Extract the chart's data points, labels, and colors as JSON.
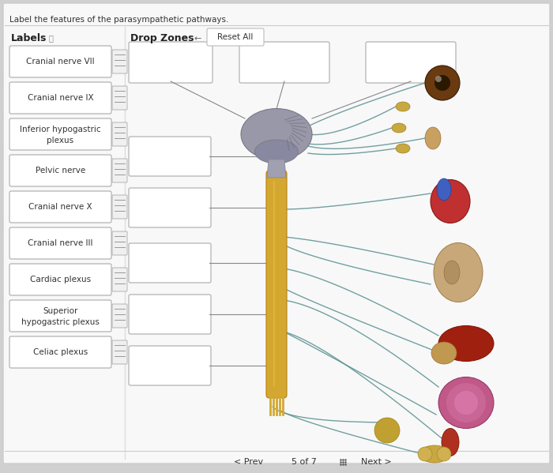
{
  "title": "Label the features of the parasympathetic pathways.",
  "bg_color": "#e8e8e8",
  "panel_bg": "#f2f2f2",
  "label_items": [
    "Cranial nerve VII",
    "Cranial nerve IX",
    "Inferior hypogastric\nplexus",
    "Pelvic nerve",
    "Cranial nerve X",
    "Cranial nerve III",
    "Cardiac plexus",
    "Superior\nhypogastric plexus",
    "Celiac plexus"
  ],
  "nerve_color": "#5a9090",
  "spine_color": "#d4a830",
  "spine_edge": "#b88010",
  "box_border": "#aaaaaa",
  "footer_prev": "< Prev",
  "footer_page": "5 of 7",
  "footer_next": "Next >",
  "reset_text": "Reset All"
}
